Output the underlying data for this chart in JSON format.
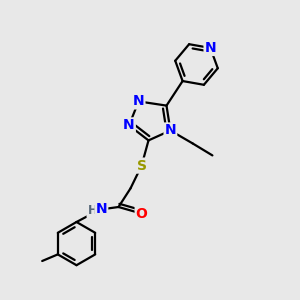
{
  "bg_color": "#e8e8e8",
  "atom_colors": {
    "N": "#0000ff",
    "O": "#ff0000",
    "S": "#999900",
    "C": "#000000",
    "H": "#556677"
  },
  "bond_color": "#000000",
  "bond_width": 1.6,
  "title": ""
}
